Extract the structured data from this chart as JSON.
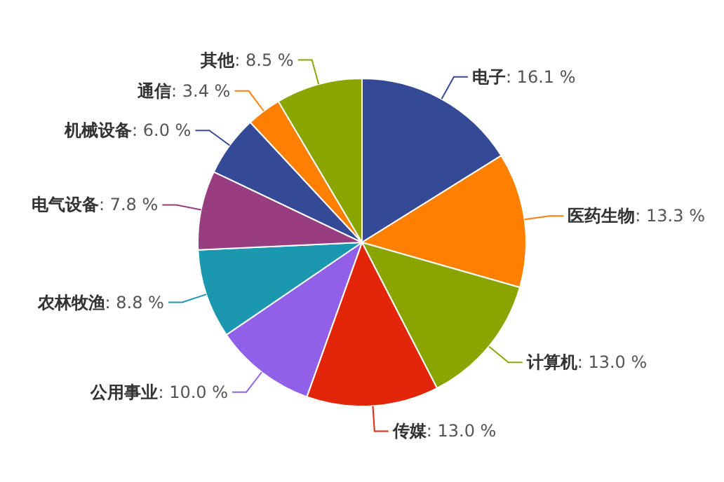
{
  "chart_data": {
    "type": "pie",
    "categories": [
      "电子",
      "医药生物",
      "计算机",
      "传媒",
      "公用事业",
      "农林牧渔",
      "电气设备",
      "机械设备",
      "通信",
      "其他"
    ],
    "values": [
      16.1,
      13.3,
      13.0,
      13.0,
      10.0,
      8.8,
      7.8,
      6.0,
      3.4,
      8.5
    ],
    "value_labels": [
      ": 16.1 %",
      ": 13.3 %",
      ": 13.0 %",
      ": 13.0 %",
      ": 10.0 %",
      ": 8.8 %",
      ": 7.8 %",
      ": 6.0 %",
      ": 3.4 %",
      ": 8.5 %"
    ],
    "colors": [
      "#354a96",
      "#ff7f00",
      "#8aa500",
      "#e3260a",
      "#9160e8",
      "#1b97b0",
      "#983d80",
      "#354a96",
      "#ff7f00",
      "#8aa500"
    ],
    "legend": false
  }
}
